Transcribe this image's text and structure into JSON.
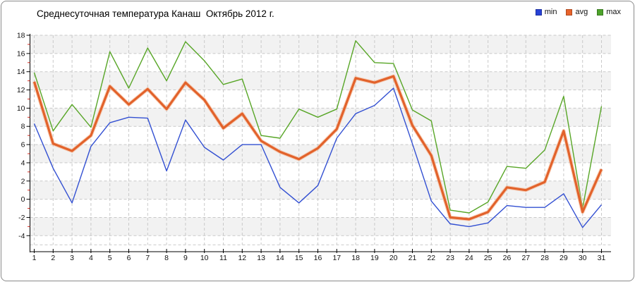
{
  "title": "Среднесуточная температура Канаш  Октябрь 2012 г.",
  "legend": {
    "items": [
      {
        "label": "min",
        "color": "#2742d6"
      },
      {
        "label": "avg",
        "color": "#e8632b"
      },
      {
        "label": "max",
        "color": "#4da32b"
      }
    ]
  },
  "colors": {
    "band": "#f2f2f2",
    "grid": "#c9c9c9",
    "axis": "#000000",
    "minor_tick": "#d42a1e",
    "tick_label": "#111111"
  },
  "chart_data": {
    "type": "line",
    "title": "Среднесуточная температура Канаш  Октябрь 2012 г.",
    "xlabel": "",
    "ylabel": "",
    "x": [
      1,
      2,
      3,
      4,
      5,
      6,
      7,
      8,
      9,
      10,
      11,
      12,
      13,
      14,
      15,
      16,
      17,
      18,
      19,
      20,
      21,
      22,
      23,
      24,
      25,
      26,
      27,
      28,
      29,
      30,
      31
    ],
    "series": [
      {
        "name": "min",
        "color": "#3350d2",
        "width": 1.4,
        "values": [
          8.3,
          3.4,
          -0.4,
          5.8,
          8.4,
          9.0,
          8.9,
          3.1,
          8.7,
          5.7,
          4.3,
          6.0,
          6.0,
          1.3,
          -0.4,
          1.5,
          6.7,
          9.4,
          10.3,
          12.2,
          6.1,
          -0.2,
          -2.7,
          -3.0,
          -2.6,
          -0.7,
          -0.9,
          -0.9,
          0.6,
          -3.1,
          -0.6
        ]
      },
      {
        "name": "avg",
        "color": "#e2622b",
        "halo": "#f6b089",
        "width": 3.2,
        "values": [
          12.9,
          6.1,
          5.3,
          7.0,
          12.4,
          10.4,
          12.1,
          9.9,
          12.8,
          10.9,
          7.8,
          9.4,
          6.4,
          5.2,
          4.4,
          5.6,
          7.7,
          13.3,
          12.8,
          13.5,
          8.1,
          4.8,
          -2.0,
          -2.2,
          -1.4,
          1.3,
          1.0,
          1.9,
          7.5,
          -1.4,
          3.3
        ]
      },
      {
        "name": "max",
        "color": "#58a627",
        "width": 1.4,
        "values": [
          13.9,
          7.5,
          10.4,
          7.9,
          16.2,
          12.2,
          16.6,
          13.0,
          17.3,
          15.2,
          12.6,
          13.2,
          7.0,
          6.7,
          9.9,
          9.0,
          9.9,
          17.4,
          15.0,
          14.9,
          9.8,
          8.6,
          -1.2,
          -1.5,
          -0.3,
          3.6,
          3.4,
          5.4,
          11.3,
          -1.0,
          10.2
        ]
      }
    ],
    "ylim": [
      -5,
      18
    ],
    "yticks_major": [
      18,
      16,
      14,
      12,
      10,
      8,
      6,
      4,
      2,
      0,
      -2,
      -4
    ],
    "yticks_minor": [
      17,
      15,
      13,
      11,
      9,
      7,
      5,
      3,
      1,
      -1,
      -3
    ],
    "gray_band_tops": [
      18,
      14,
      10,
      6,
      2,
      -2
    ],
    "grid": true,
    "legend_position": "top-right"
  }
}
